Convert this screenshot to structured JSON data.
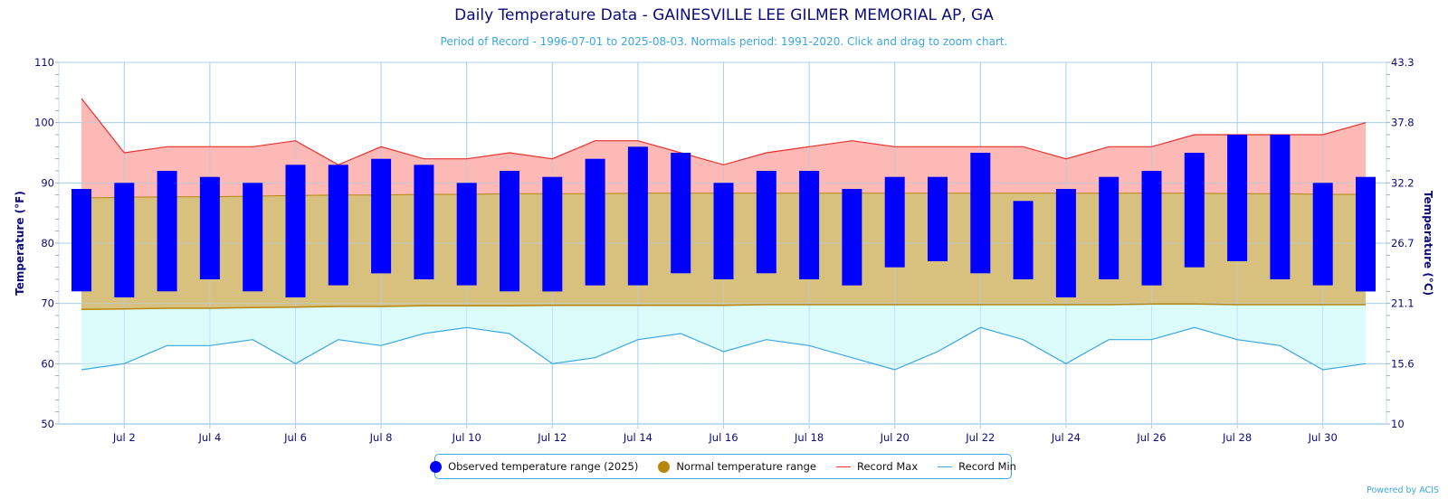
{
  "header": {
    "title": "Daily Temperature Data - GAINESVILLE LEE GILMER MEMORIAL AP, GA",
    "subtitle": "Period of Record - 1996-07-01 to 2025-08-03. Normals period: 1991-2020. Click and drag to zoom chart."
  },
  "credit": "Powered by ACIS",
  "legend": {
    "observed": "Observed temperature range (2025)",
    "normal": "Normal temperature range",
    "record_max": "Record Max",
    "record_min": "Record Min"
  },
  "colors": {
    "observed": "#0000ff",
    "normal": "#b8860b",
    "normal_fill": "#d8c07f",
    "record_max": "#e8312f",
    "record_max_fill": "#fcb5b1",
    "record_min": "#3ba7e0",
    "record_min_fill": "#dcfcfc",
    "grid": "#a9d2ee",
    "axis_text": "#0b0b7a"
  },
  "chart_data": {
    "type": "bar",
    "title": "Daily Temperature Data - GAINESVILLE LEE GILMER MEMORIAL AP, GA",
    "ylabel": "Temperature (°F)",
    "ylabel_right": "Temperature (°C)",
    "ylim": [
      50,
      110
    ],
    "y_ticks": [
      50,
      60,
      70,
      80,
      90,
      100,
      110
    ],
    "y_right_ticks": [
      "10",
      "15.6",
      "21.1",
      "26.7",
      "32.2",
      "37.8",
      "43.3"
    ],
    "x_days": [
      1,
      2,
      3,
      4,
      5,
      6,
      7,
      8,
      9,
      10,
      11,
      12,
      13,
      14,
      15,
      16,
      17,
      18,
      19,
      20,
      21,
      22,
      23,
      24,
      25,
      26,
      27,
      28,
      29,
      30,
      31
    ],
    "x_tick_labels": [
      "Jul 2",
      "Jul 4",
      "Jul 6",
      "Jul 8",
      "Jul 10",
      "Jul 12",
      "Jul 14",
      "Jul 16",
      "Jul 18",
      "Jul 20",
      "Jul 22",
      "Jul 24",
      "Jul 26",
      "Jul 28",
      "Jul 30"
    ],
    "x_tick_days": [
      2,
      4,
      6,
      8,
      10,
      12,
      14,
      16,
      18,
      20,
      22,
      24,
      26,
      28,
      30
    ],
    "grid": true,
    "legend_position": "bottom-center",
    "series": [
      {
        "name": "Observed temperature range (2025)",
        "type": "range-bar",
        "low": [
          72,
          71,
          72,
          74,
          72,
          71,
          73,
          75,
          74,
          73,
          72,
          72,
          73,
          73,
          75,
          74,
          75,
          74,
          73,
          76,
          77,
          75,
          74,
          71,
          74,
          73,
          76,
          77,
          74,
          73,
          72
        ],
        "high": [
          89,
          90,
          92,
          91,
          90,
          93,
          93,
          94,
          93,
          90,
          92,
          91,
          94,
          96,
          95,
          90,
          92,
          92,
          89,
          91,
          91,
          95,
          87,
          89,
          91,
          92,
          95,
          98,
          98,
          90,
          91
        ]
      },
      {
        "name": "Normal temperature range",
        "type": "area-range",
        "low": [
          69.0,
          69.1,
          69.2,
          69.2,
          69.3,
          69.4,
          69.5,
          69.5,
          69.6,
          69.6,
          69.6,
          69.7,
          69.7,
          69.7,
          69.7,
          69.7,
          69.8,
          69.8,
          69.8,
          69.8,
          69.8,
          69.8,
          69.8,
          69.8,
          69.8,
          69.9,
          69.9,
          69.8,
          69.8,
          69.8,
          69.8
        ],
        "high": [
          87.5,
          87.6,
          87.7,
          87.7,
          87.8,
          87.9,
          88.0,
          88.0,
          88.1,
          88.1,
          88.2,
          88.2,
          88.2,
          88.3,
          88.3,
          88.3,
          88.3,
          88.3,
          88.3,
          88.3,
          88.3,
          88.3,
          88.3,
          88.3,
          88.3,
          88.3,
          88.3,
          88.2,
          88.2,
          88.1,
          88.1
        ]
      },
      {
        "name": "Record Max",
        "type": "line",
        "values": [
          104,
          95,
          96,
          96,
          96,
          97,
          93,
          96,
          94,
          94,
          95,
          94,
          97,
          97,
          95,
          93,
          95,
          96,
          97,
          96,
          96,
          96,
          96,
          94,
          96,
          96,
          98,
          98,
          98,
          98,
          100
        ]
      },
      {
        "name": "Record Min",
        "type": "line",
        "values": [
          59,
          60,
          63,
          63,
          64,
          60,
          64,
          63,
          65,
          66,
          65,
          60,
          61,
          64,
          65,
          62,
          64,
          63,
          61,
          59,
          62,
          66,
          64,
          60,
          64,
          64,
          66,
          64,
          63,
          59,
          60
        ]
      }
    ]
  }
}
